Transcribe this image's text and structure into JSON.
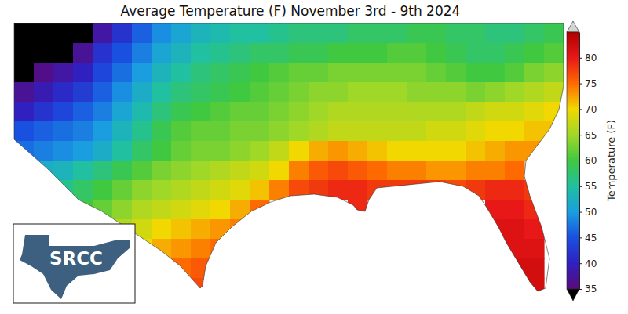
{
  "chart_data": {
    "type": "heatmap",
    "title": "Average Temperature (F) November 3rd - 9th 2024",
    "logo": "SRCC",
    "colors": [
      "#5a0a7a",
      "#3020c0",
      "#1a50e0",
      "#1a9ee0",
      "#20c0a0",
      "#40c840",
      "#a0d828",
      "#f0d800",
      "#ff6a00",
      "#e81818",
      "#b00000"
    ],
    "colorbar": {
      "label": "Temperature (F)",
      "range": [
        35,
        85
      ],
      "ticks": [
        35,
        40,
        45,
        50,
        55,
        60,
        65,
        70,
        75,
        80
      ]
    },
    "cells": [
      [
        30,
        31,
        32,
        34,
        38,
        42,
        46,
        49,
        51,
        53,
        54,
        55,
        55,
        56,
        57,
        57,
        57,
        58,
        58,
        58,
        59,
        59,
        58,
        58,
        57,
        57,
        58,
        59
      ],
      [
        30,
        32,
        34,
        37,
        42,
        45,
        48,
        51,
        53,
        55,
        56,
        57,
        58,
        58,
        59,
        59,
        60,
        60,
        60,
        61,
        61,
        60,
        59,
        58,
        58,
        59,
        60,
        61
      ],
      [
        34,
        36,
        38,
        40,
        44,
        47,
        50,
        53,
        55,
        57,
        58,
        59,
        60,
        61,
        62,
        62,
        63,
        63,
        63,
        63,
        63,
        62,
        61,
        60,
        60,
        61,
        63,
        64
      ],
      [
        37,
        39,
        41,
        43,
        46,
        49,
        52,
        55,
        57,
        58,
        59,
        60,
        61,
        62,
        63,
        64,
        64,
        65,
        65,
        65,
        64,
        64,
        64,
        63,
        64,
        65,
        66,
        67
      ],
      [
        40,
        42,
        44,
        46,
        48,
        51,
        54,
        57,
        59,
        60,
        61,
        62,
        62,
        63,
        64,
        65,
        66,
        66,
        66,
        66,
        66,
        66,
        66,
        67,
        68,
        68,
        69,
        70
      ],
      [
        45,
        46,
        47,
        48,
        50,
        53,
        56,
        59,
        61,
        62,
        62,
        63,
        63,
        64,
        65,
        66,
        67,
        67,
        67,
        67,
        67,
        68,
        68,
        69,
        70,
        70,
        71,
        71
      ],
      [
        47,
        48,
        49,
        50,
        52,
        55,
        58,
        60,
        62,
        63,
        63,
        64,
        65,
        67,
        70,
        72,
        73,
        72,
        71,
        70,
        70,
        70,
        70,
        71,
        72,
        73,
        73,
        null
      ],
      [
        null,
        52,
        53,
        55,
        57,
        59,
        61,
        63,
        64,
        65,
        66,
        67,
        68,
        70,
        74,
        76,
        77,
        76,
        75,
        74,
        74,
        73,
        73,
        74,
        74,
        75,
        null,
        null
      ],
      [
        null,
        null,
        56,
        58,
        60,
        62,
        64,
        65,
        66,
        67,
        68,
        69,
        71,
        74,
        77,
        78,
        79,
        79,
        78,
        78,
        78,
        78,
        77,
        78,
        79,
        79,
        78,
        null
      ],
      [
        null,
        null,
        null,
        60,
        62,
        64,
        66,
        67,
        68,
        69,
        70,
        72,
        75,
        null,
        null,
        null,
        null,
        79,
        null,
        null,
        null,
        null,
        null,
        null,
        80,
        80,
        79,
        null
      ],
      [
        null,
        null,
        null,
        null,
        null,
        66,
        68,
        70,
        71,
        72,
        73,
        74,
        null,
        null,
        null,
        null,
        null,
        null,
        null,
        null,
        null,
        null,
        null,
        null,
        81,
        81,
        80,
        null
      ],
      [
        null,
        null,
        null,
        null,
        null,
        null,
        70,
        72,
        73,
        74,
        75,
        null,
        null,
        null,
        null,
        null,
        null,
        null,
        null,
        null,
        null,
        null,
        null,
        null,
        null,
        81,
        81,
        null
      ],
      [
        null,
        null,
        null,
        null,
        null,
        null,
        null,
        null,
        75,
        76,
        null,
        null,
        null,
        null,
        null,
        null,
        null,
        null,
        null,
        null,
        null,
        null,
        null,
        null,
        null,
        82,
        82,
        null
      ],
      [
        null,
        null,
        null,
        null,
        null,
        null,
        null,
        null,
        null,
        77,
        null,
        null,
        null,
        null,
        null,
        null,
        null,
        null,
        null,
        null,
        null,
        null,
        null,
        null,
        null,
        null,
        82,
        null
      ]
    ]
  }
}
